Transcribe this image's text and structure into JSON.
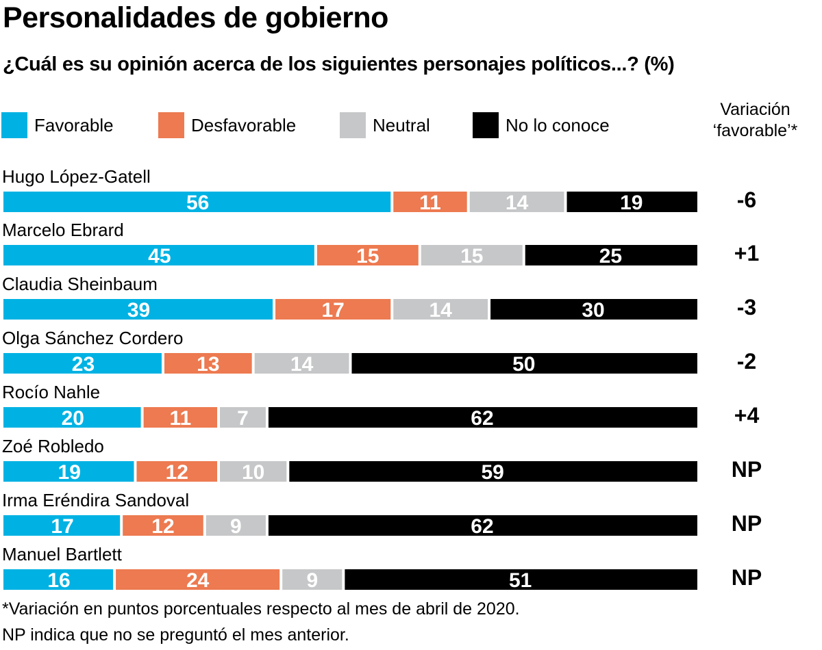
{
  "title": "Personalidades de gobierno",
  "subtitle": "¿Cuál es su opinión acerca de los siguientes personajes políticos...?  (%)",
  "legend": [
    {
      "label": "Favorable",
      "color": "#00b2e3"
    },
    {
      "label": "Desfavorable",
      "color": "#ed7a50"
    },
    {
      "label": "Neutral",
      "color": "#c6c7c8"
    },
    {
      "label": "No lo conoce",
      "color": "#000000"
    }
  ],
  "variation_header": {
    "line1": "Variación",
    "line2": "‘favorable’*"
  },
  "footnotes": [
    "*Variación en puntos porcentuales respecto al mes de abril de 2020.",
    "NP indica que no se preguntó el mes anterior."
  ],
  "chart_data": {
    "type": "bar",
    "orientation": "horizontal",
    "stacked": true,
    "title": "Personalidades de gobierno",
    "subtitle": "¿Cuál es su opinión acerca de los siguientes personajes políticos...?  (%)",
    "unit": "%",
    "xlim": [
      0,
      100
    ],
    "categories": [
      "Hugo López-Gatell",
      "Marcelo Ebrard",
      "Claudia Sheinbaum",
      "Olga Sánchez Cordero",
      "Rocío Nahle",
      "Zoé Robledo",
      "Irma Eréndira Sandoval",
      "Manuel Bartlett"
    ],
    "series": [
      {
        "name": "Favorable",
        "color": "#00b2e3",
        "values": [
          56,
          45,
          39,
          23,
          20,
          19,
          17,
          16
        ]
      },
      {
        "name": "Desfavorable",
        "color": "#ed7a50",
        "values": [
          11,
          15,
          17,
          13,
          11,
          12,
          12,
          24
        ]
      },
      {
        "name": "Neutral",
        "color": "#c6c7c8",
        "values": [
          14,
          15,
          14,
          14,
          7,
          10,
          9,
          9
        ]
      },
      {
        "name": "No lo conoce",
        "color": "#000000",
        "values": [
          19,
          25,
          30,
          50,
          62,
          59,
          62,
          51
        ]
      }
    ],
    "variation_favorable": [
      "-6",
      "+1",
      "-3",
      "-2",
      "+4",
      "NP",
      "NP",
      "NP"
    ],
    "legend_position": "top",
    "grid": false
  }
}
